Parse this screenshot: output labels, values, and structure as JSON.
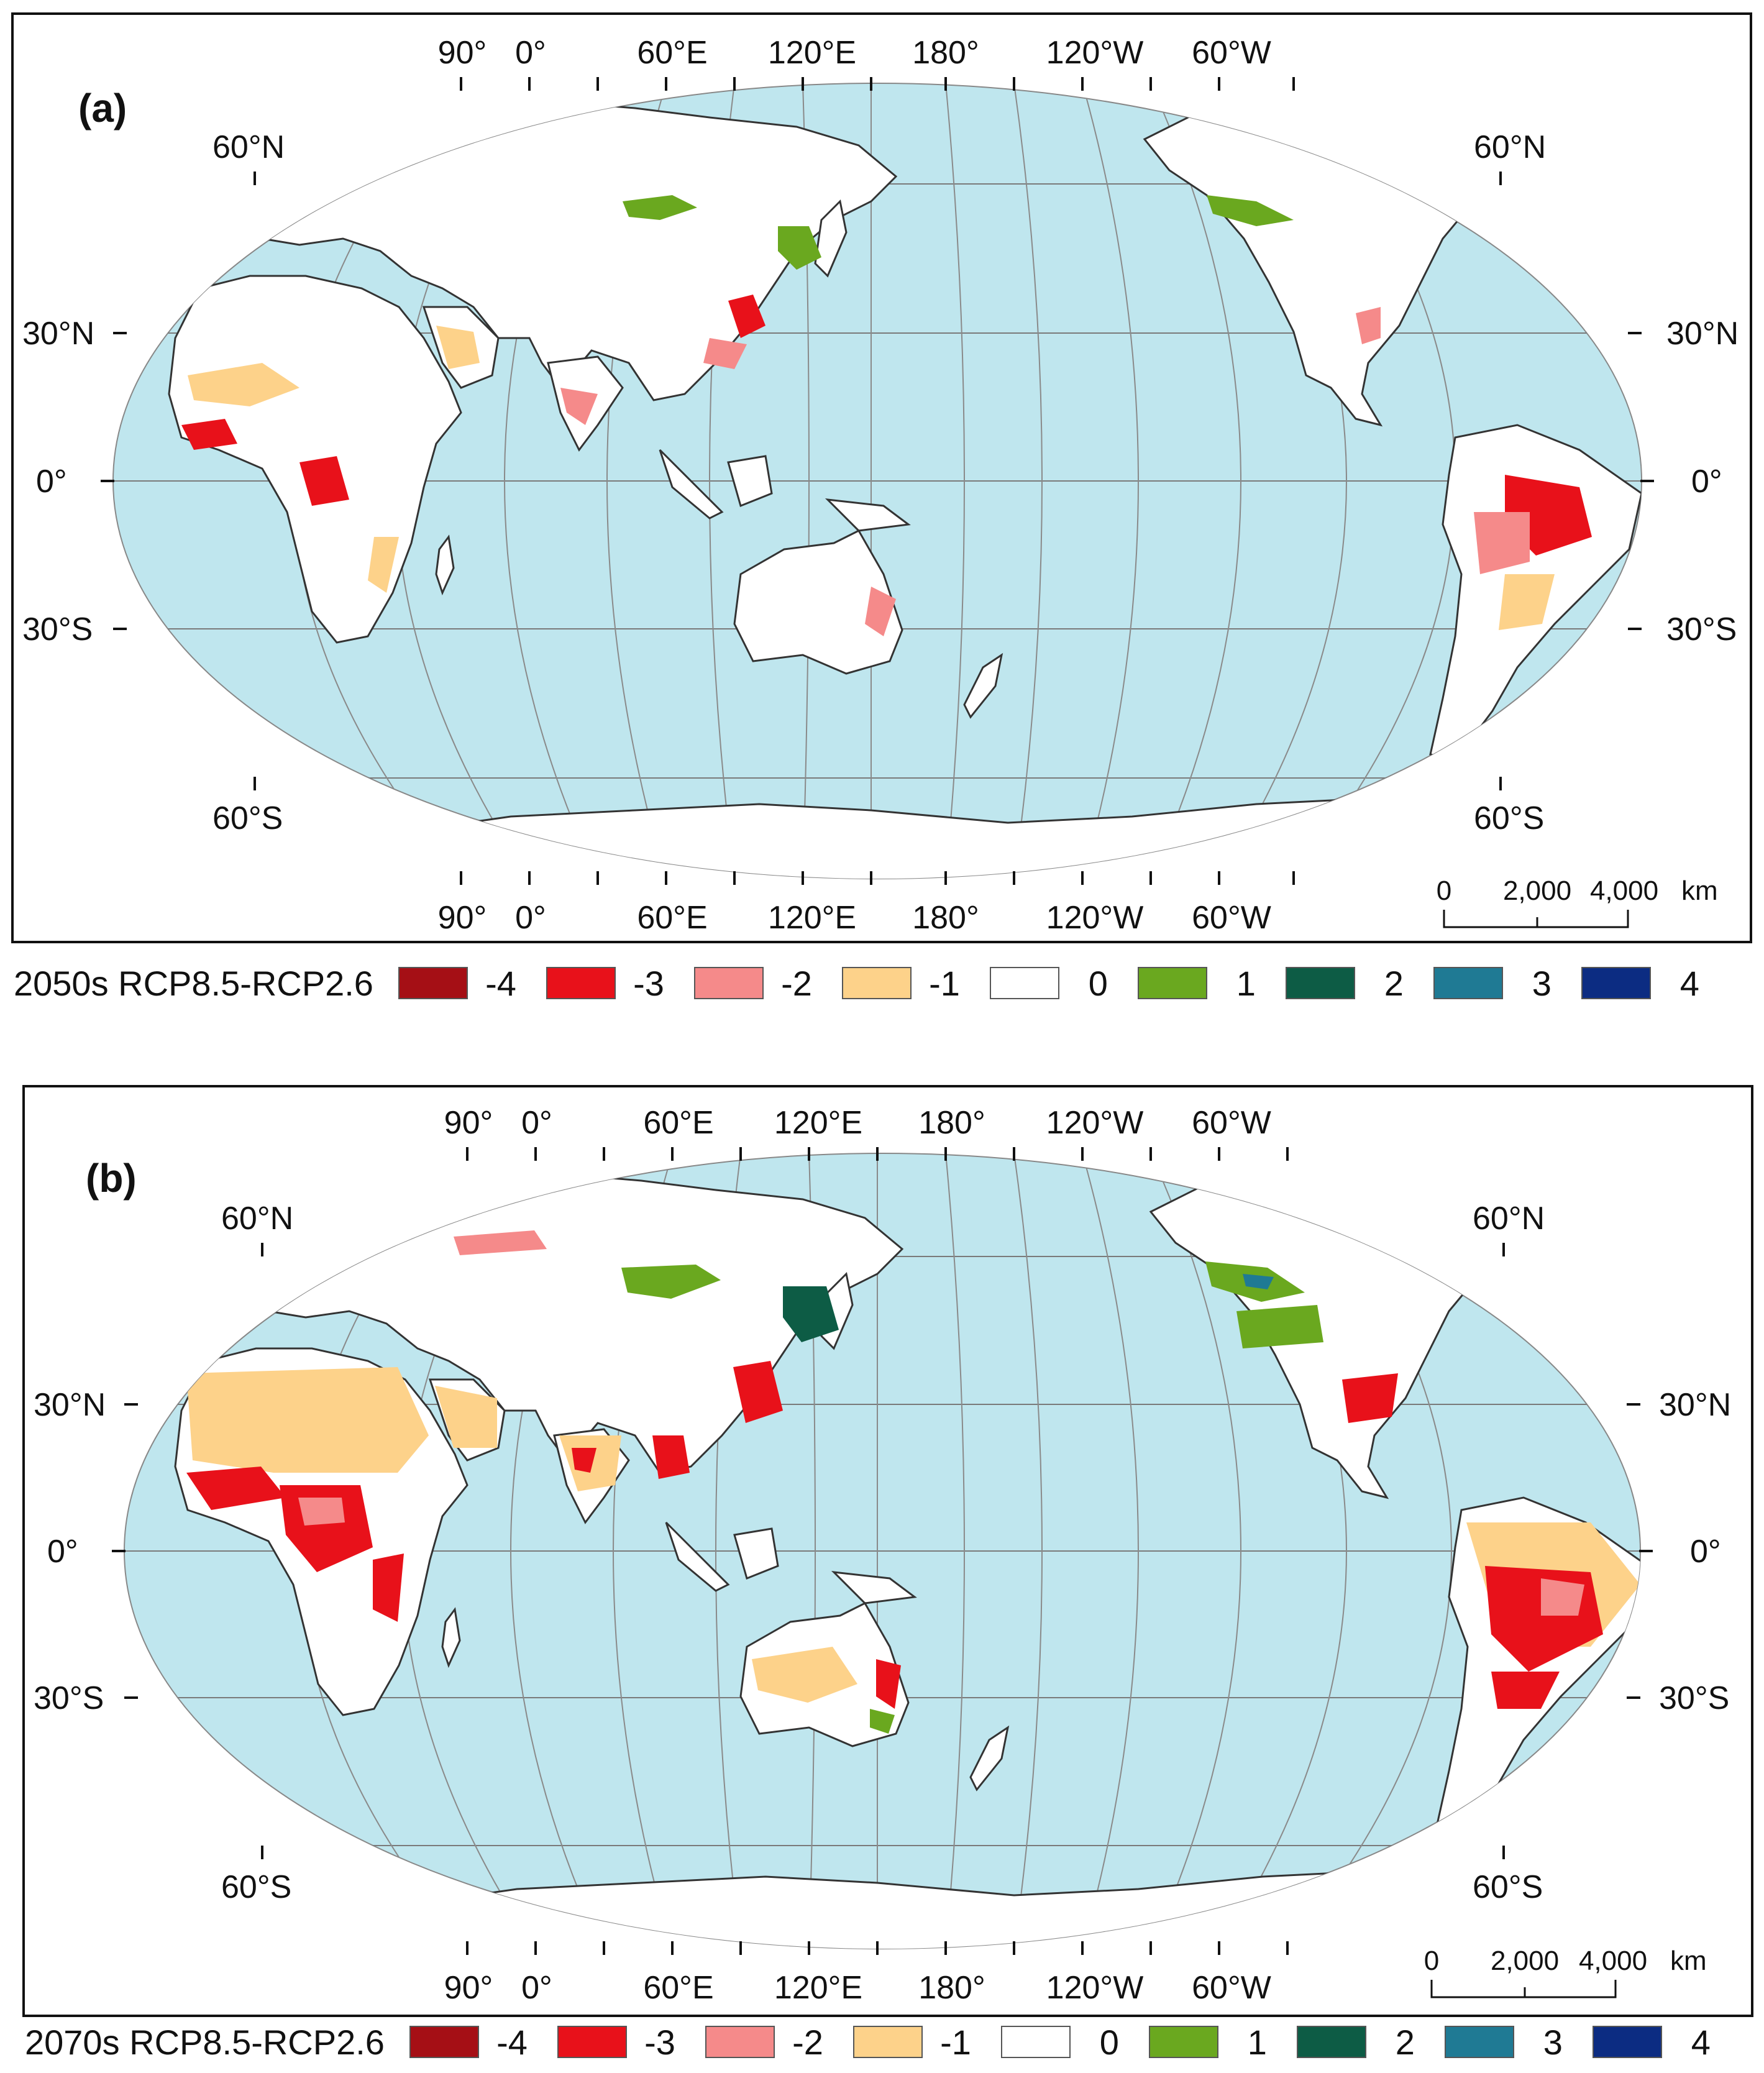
{
  "colors": {
    "ocean": "#bfe6ee",
    "land": "#ffffff",
    "border": "#333333",
    "grid": "#7a7a7a",
    "class_-4": "#a50f15",
    "class_-3": "#e8111a",
    "class_-2": "#f58a8a",
    "class_-1": "#fdd28a",
    "class_0": "#ffffff",
    "class_1": "#6aa81f",
    "class_2": "#0d5c45",
    "class_3": "#1f7a94",
    "class_4": "#0c2c82"
  },
  "panels": [
    {
      "label": "(a)",
      "legend_title": "2050s RCP8.5-RCP2.6",
      "top_lon_labels": [
        "90°",
        "0°",
        "60°E",
        "120°E",
        "180°",
        "120°W",
        "60°W"
      ],
      "bottom_lon_labels": [
        "90°",
        "0°",
        "60°E",
        "120°E",
        "180°",
        "120°W",
        "60°W"
      ],
      "lat_labels_left": [
        "60°N",
        "30°N",
        "0°",
        "30°S",
        "60°S"
      ],
      "lat_labels_right": [
        "60°N",
        "30°N",
        "0°",
        "30°S",
        "60°S"
      ],
      "scale": {
        "ticks": [
          "0",
          "2,000",
          "4,000"
        ],
        "unit": "km"
      }
    },
    {
      "label": "(b)",
      "legend_title": "2070s RCP8.5-RCP2.6",
      "top_lon_labels": [
        "90°",
        "0°",
        "60°E",
        "120°E",
        "180°",
        "120°W",
        "60°W"
      ],
      "bottom_lon_labels": [
        "90°",
        "0°",
        "60°E",
        "120°E",
        "180°",
        "120°W",
        "60°W"
      ],
      "lat_labels_left": [
        "60°N",
        "30°N",
        "0°",
        "30°S",
        "60°S"
      ],
      "lat_labels_right": [
        "60°N",
        "30°N",
        "0°",
        "30°S",
        "60°S"
      ],
      "scale": {
        "ticks": [
          "0",
          "2,000",
          "4,000"
        ],
        "unit": "km"
      }
    }
  ],
  "legend_classes": [
    {
      "value": "-4",
      "key": "class_-4"
    },
    {
      "value": "-3",
      "key": "class_-3"
    },
    {
      "value": "-2",
      "key": "class_-2"
    },
    {
      "value": "-1",
      "key": "class_-1"
    },
    {
      "value": "0",
      "key": "class_0"
    },
    {
      "value": "1",
      "key": "class_1"
    },
    {
      "value": "2",
      "key": "class_2"
    },
    {
      "value": "3",
      "key": "class_3"
    },
    {
      "value": "4",
      "key": "class_4"
    }
  ]
}
